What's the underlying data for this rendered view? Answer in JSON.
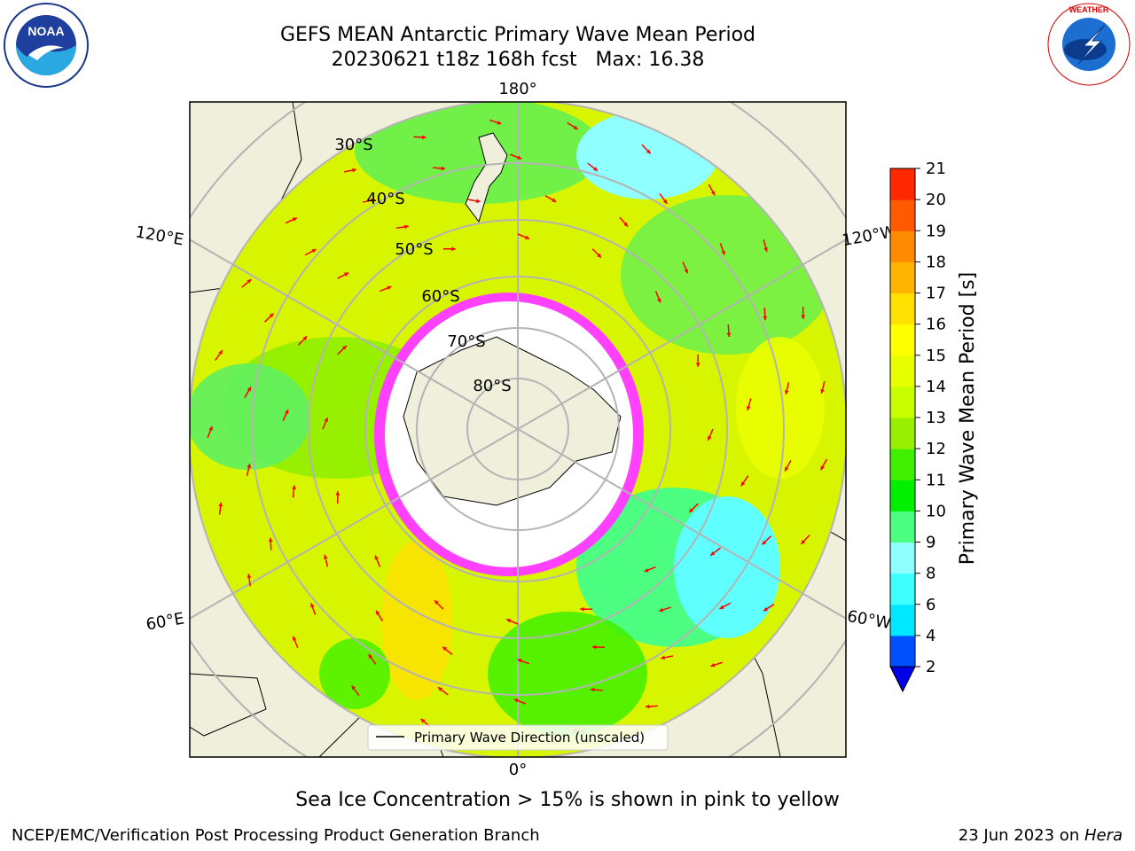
{
  "title": {
    "line1": "GEFS MEAN Antarctic Primary Wave Mean Period",
    "line2": "20230621 t18z 168h fcst   Max: 16.38"
  },
  "logos": {
    "left": "NOAA",
    "right": "NATIONAL WEATHER SERVICE"
  },
  "map": {
    "longitude_labels": [
      "180°",
      "120°E",
      "120°W",
      "60°E",
      "60°W",
      "0°"
    ],
    "latitude_labels": [
      "30°S",
      "40°S",
      "50°S",
      "60°S",
      "70°S",
      "80°S"
    ],
    "legend_label": "Primary Wave Direction (unscaled)"
  },
  "colorbar": {
    "label": "Primary Wave Mean Period [s]",
    "ticks": [
      "2",
      "4",
      "6",
      "8",
      "9",
      "10",
      "11",
      "12",
      "13",
      "14",
      "15",
      "16",
      "17",
      "18",
      "19",
      "20",
      "21"
    ],
    "colors": [
      "#0050ff",
      "#00e8ff",
      "#40ffff",
      "#90ffff",
      "#4cff80",
      "#00f000",
      "#40f000",
      "#98f000",
      "#c8ff00",
      "#e8ff00",
      "#ffff00",
      "#ffe000",
      "#ffb400",
      "#ff8c00",
      "#ff5a00",
      "#ff2800",
      "#ff0000"
    ],
    "extend_color": "#0000e6"
  },
  "colors": {
    "ice_edge": "#ff40ff",
    "arrow": "#ff0000",
    "land": "#efefdc",
    "ocean_base": "#d8f500"
  },
  "caption": "Sea Ice Concentration > 15% is shown in pink to yellow",
  "footer": {
    "left": "NCEP/EMC/Verification Post Processing Product Generation Branch",
    "right_prefix": "23 Jun 2023 on ",
    "right_host": "Hera"
  }
}
